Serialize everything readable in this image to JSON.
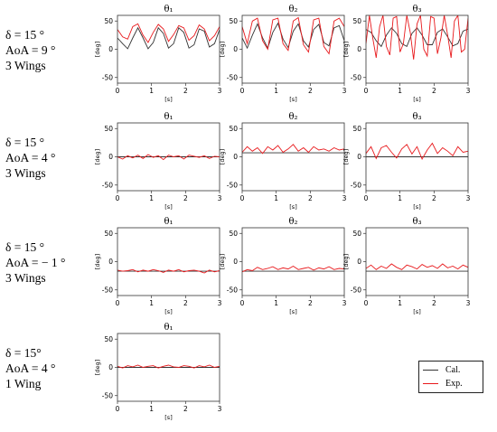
{
  "rows": [
    {
      "labels": [
        "δ = 15 °",
        "AoA = 9 °",
        "3 Wings"
      ]
    },
    {
      "labels": [
        "δ = 15 °",
        "AoA = 4 °",
        "3 Wings"
      ]
    },
    {
      "labels": [
        "δ = 15 °",
        "AoA = − 1 °",
        "3 Wings"
      ]
    },
    {
      "labels": [
        "δ = 15°",
        "AoA = 4 °",
        "1 Wing"
      ]
    }
  ],
  "legend": {
    "cal": "Cal.",
    "exp": "Exp."
  },
  "colors": {
    "cal": "#333333",
    "exp": "#e8191c"
  },
  "chart_data": [
    {
      "type": "line",
      "row": 0,
      "col": 0,
      "title": "θ₁",
      "xlabel": "[s]",
      "ylabel": "[deg]",
      "xlim": [
        0,
        3
      ],
      "ylim": [
        -60,
        60
      ],
      "yticks": [
        -50,
        0,
        50
      ],
      "xticks": [
        0,
        1,
        2,
        3
      ],
      "series": [
        {
          "name": "Cal.",
          "x": [
            0,
            0.15,
            0.3,
            0.45,
            0.6,
            0.75,
            0.9,
            1.05,
            1.2,
            1.35,
            1.5,
            1.65,
            1.8,
            1.95,
            2.1,
            2.25,
            2.4,
            2.55,
            2.7,
            2.85,
            3.0
          ],
          "values": [
            20,
            10,
            1,
            20,
            38,
            20,
            1,
            12,
            38,
            28,
            2,
            10,
            38,
            30,
            2,
            8,
            36,
            32,
            4,
            10,
            35
          ]
        },
        {
          "name": "Exp.",
          "x": [
            0,
            0.15,
            0.3,
            0.45,
            0.6,
            0.75,
            0.9,
            1.05,
            1.2,
            1.35,
            1.5,
            1.65,
            1.8,
            1.95,
            2.1,
            2.25,
            2.4,
            2.55,
            2.7,
            2.85,
            3.0
          ],
          "values": [
            35,
            22,
            18,
            40,
            45,
            25,
            12,
            30,
            44,
            36,
            14,
            26,
            42,
            38,
            16,
            24,
            43,
            36,
            15,
            24,
            40
          ]
        }
      ]
    },
    {
      "type": "line",
      "row": 0,
      "col": 1,
      "title": "θ₂",
      "xlabel": "[s]",
      "ylabel": "[deg]",
      "xlim": [
        0,
        3
      ],
      "ylim": [
        -60,
        60
      ],
      "yticks": [
        -50,
        0,
        50
      ],
      "xticks": [
        0,
        1,
        2,
        3
      ],
      "series": [
        {
          "name": "Cal.",
          "x": [
            0,
            0.15,
            0.3,
            0.45,
            0.6,
            0.75,
            0.9,
            1.05,
            1.2,
            1.35,
            1.5,
            1.65,
            1.8,
            1.95,
            2.1,
            2.25,
            2.4,
            2.55,
            2.7,
            2.85,
            3.0
          ],
          "values": [
            20,
            2,
            25,
            45,
            20,
            2,
            30,
            46,
            18,
            3,
            32,
            45,
            15,
            4,
            35,
            44,
            12,
            6,
            38,
            42,
            15
          ]
        },
        {
          "name": "Exp.",
          "x": [
            0,
            0.15,
            0.3,
            0.45,
            0.6,
            0.75,
            0.9,
            1.05,
            1.2,
            1.35,
            1.5,
            1.65,
            1.8,
            1.95,
            2.1,
            2.25,
            2.4,
            2.55,
            2.7,
            2.85,
            3.0
          ],
          "values": [
            40,
            10,
            50,
            55,
            15,
            0,
            52,
            55,
            10,
            -2,
            50,
            56,
            8,
            -5,
            52,
            55,
            5,
            -8,
            50,
            55,
            40
          ]
        }
      ]
    },
    {
      "type": "line",
      "row": 0,
      "col": 2,
      "title": "θ₃",
      "xlabel": "[s]",
      "ylabel": "[deg]",
      "xlim": [
        0,
        3
      ],
      "ylim": [
        -60,
        60
      ],
      "yticks": [
        -50,
        0,
        50
      ],
      "xticks": [
        0,
        1,
        2,
        3
      ],
      "series": [
        {
          "name": "Cal.",
          "x": [
            0,
            0.15,
            0.3,
            0.45,
            0.6,
            0.75,
            0.9,
            1.05,
            1.2,
            1.35,
            1.5,
            1.65,
            1.8,
            1.95,
            2.1,
            2.25,
            2.4,
            2.55,
            2.7,
            2.85,
            3.0
          ],
          "values": [
            35,
            30,
            15,
            5,
            25,
            38,
            28,
            10,
            5,
            28,
            38,
            25,
            8,
            8,
            30,
            36,
            22,
            6,
            10,
            32,
            36
          ]
        },
        {
          "name": "Exp.",
          "x": [
            0,
            0.1,
            0.2,
            0.3,
            0.4,
            0.5,
            0.6,
            0.7,
            0.8,
            0.9,
            1.0,
            1.1,
            1.2,
            1.3,
            1.4,
            1.5,
            1.6,
            1.7,
            1.8,
            1.9,
            2.0,
            2.1,
            2.2,
            2.3,
            2.4,
            2.5,
            2.6,
            2.7,
            2.8,
            2.9,
            3.0
          ],
          "values": [
            10,
            60,
            20,
            -15,
            40,
            60,
            5,
            -10,
            55,
            58,
            -5,
            10,
            60,
            30,
            -18,
            45,
            60,
            0,
            -12,
            58,
            55,
            -8,
            20,
            60,
            25,
            -15,
            50,
            60,
            -5,
            0,
            55
          ]
        }
      ]
    },
    {
      "type": "line",
      "row": 1,
      "col": 0,
      "title": "θ₁",
      "xlabel": "[s]",
      "ylabel": "[deg]",
      "xlim": [
        0,
        3
      ],
      "ylim": [
        -60,
        60
      ],
      "yticks": [
        -50,
        0,
        50
      ],
      "xticks": [
        0,
        1,
        2,
        3
      ],
      "series": [
        {
          "name": "Cal.",
          "x": [
            0,
            3
          ],
          "values": [
            0,
            0
          ]
        },
        {
          "name": "Exp.",
          "x": [
            0,
            0.15,
            0.3,
            0.45,
            0.6,
            0.75,
            0.9,
            1.05,
            1.2,
            1.35,
            1.5,
            1.65,
            1.8,
            1.95,
            2.1,
            2.25,
            2.4,
            2.55,
            2.7,
            2.85,
            3.0
          ],
          "values": [
            0,
            -4,
            2,
            -2,
            3,
            -3,
            4,
            -1,
            2,
            -5,
            3,
            0,
            2,
            -4,
            3,
            1,
            -1,
            2,
            -3,
            1,
            0
          ]
        }
      ]
    },
    {
      "type": "line",
      "row": 1,
      "col": 1,
      "title": "θ₂",
      "xlabel": "[s]",
      "ylabel": "[deg]",
      "xlim": [
        0,
        3
      ],
      "ylim": [
        -60,
        60
      ],
      "yticks": [
        -50,
        0,
        50
      ],
      "xticks": [
        0,
        1,
        2,
        3
      ],
      "series": [
        {
          "name": "Cal.",
          "x": [
            0,
            3
          ],
          "values": [
            7,
            7
          ]
        },
        {
          "name": "Exp.",
          "x": [
            0,
            0.15,
            0.3,
            0.45,
            0.6,
            0.75,
            0.9,
            1.05,
            1.2,
            1.35,
            1.5,
            1.65,
            1.8,
            1.95,
            2.1,
            2.25,
            2.4,
            2.55,
            2.7,
            2.85,
            3.0
          ],
          "values": [
            8,
            18,
            10,
            16,
            6,
            18,
            12,
            20,
            8,
            14,
            22,
            10,
            16,
            8,
            18,
            12,
            14,
            10,
            16,
            12,
            14
          ]
        }
      ]
    },
    {
      "type": "line",
      "row": 1,
      "col": 2,
      "title": "θ₃",
      "xlabel": "[s]",
      "ylabel": "[deg]",
      "xlim": [
        0,
        3
      ],
      "ylim": [
        -60,
        60
      ],
      "yticks": [
        -50,
        0,
        50
      ],
      "xticks": [
        0,
        1,
        2,
        3
      ],
      "series": [
        {
          "name": "Cal.",
          "x": [
            0,
            3
          ],
          "values": [
            0,
            0
          ]
        },
        {
          "name": "Exp.",
          "x": [
            0,
            0.15,
            0.3,
            0.45,
            0.6,
            0.75,
            0.9,
            1.05,
            1.2,
            1.35,
            1.5,
            1.65,
            1.8,
            1.95,
            2.1,
            2.25,
            2.4,
            2.55,
            2.7,
            2.85,
            3.0
          ],
          "values": [
            6,
            18,
            -3,
            16,
            20,
            8,
            -2,
            14,
            22,
            5,
            18,
            -4,
            12,
            24,
            6,
            16,
            10,
            2,
            18,
            8,
            10
          ]
        }
      ]
    },
    {
      "type": "line",
      "row": 2,
      "col": 0,
      "title": "θ₁",
      "xlabel": "[s]",
      "ylabel": "[deg]",
      "xlim": [
        0,
        3
      ],
      "ylim": [
        -60,
        60
      ],
      "yticks": [
        -50,
        0,
        50
      ],
      "xticks": [
        0,
        1,
        2,
        3
      ],
      "series": [
        {
          "name": "Cal.",
          "x": [
            0,
            3
          ],
          "values": [
            -17,
            -17
          ]
        },
        {
          "name": "Exp.",
          "x": [
            0,
            0.15,
            0.3,
            0.45,
            0.6,
            0.75,
            0.9,
            1.05,
            1.2,
            1.35,
            1.5,
            1.65,
            1.8,
            1.95,
            2.1,
            2.25,
            2.4,
            2.55,
            2.7,
            2.85,
            3.0
          ],
          "values": [
            -15,
            -17,
            -16,
            -14,
            -18,
            -15,
            -17,
            -14,
            -16,
            -19,
            -15,
            -17,
            -14,
            -18,
            -16,
            -15,
            -17,
            -20,
            -15,
            -18,
            -16
          ]
        }
      ]
    },
    {
      "type": "line",
      "row": 2,
      "col": 1,
      "title": "θ₂",
      "xlabel": "[s]",
      "ylabel": "[deg]",
      "xlim": [
        0,
        3
      ],
      "ylim": [
        -60,
        60
      ],
      "yticks": [
        -50,
        0,
        50
      ],
      "xticks": [
        0,
        1,
        2,
        3
      ],
      "series": [
        {
          "name": "Cal.",
          "x": [
            0,
            3
          ],
          "values": [
            -17,
            -17
          ]
        },
        {
          "name": "Exp.",
          "x": [
            0,
            0.15,
            0.3,
            0.45,
            0.6,
            0.75,
            0.9,
            1.05,
            1.2,
            1.35,
            1.5,
            1.65,
            1.8,
            1.95,
            2.1,
            2.25,
            2.4,
            2.55,
            2.7,
            2.85,
            3.0
          ],
          "values": [
            -18,
            -14,
            -16,
            -10,
            -14,
            -12,
            -9,
            -14,
            -11,
            -13,
            -8,
            -14,
            -12,
            -10,
            -15,
            -11,
            -13,
            -9,
            -14,
            -12,
            -13
          ]
        }
      ]
    },
    {
      "type": "line",
      "row": 2,
      "col": 2,
      "title": "θ₃",
      "xlabel": "[s]",
      "ylabel": "[deg]",
      "xlim": [
        0,
        3
      ],
      "ylim": [
        -60,
        60
      ],
      "yticks": [
        -50,
        0,
        50
      ],
      "xticks": [
        0,
        1,
        2,
        3
      ],
      "series": [
        {
          "name": "Cal.",
          "x": [
            0,
            3
          ],
          "values": [
            -17,
            -17
          ]
        },
        {
          "name": "Exp.",
          "x": [
            0,
            0.15,
            0.3,
            0.45,
            0.6,
            0.75,
            0.9,
            1.05,
            1.2,
            1.35,
            1.5,
            1.65,
            1.8,
            1.95,
            2.1,
            2.25,
            2.4,
            2.55,
            2.7,
            2.85,
            3.0
          ],
          "values": [
            -12,
            -6,
            -14,
            -8,
            -12,
            -4,
            -10,
            -14,
            -6,
            -9,
            -13,
            -5,
            -10,
            -7,
            -12,
            -4,
            -11,
            -8,
            -13,
            -6,
            -10
          ]
        }
      ]
    },
    {
      "type": "line",
      "row": 3,
      "col": 0,
      "title": "θ₁",
      "xlabel": "[s]",
      "ylabel": "[deg]",
      "xlim": [
        0,
        3
      ],
      "ylim": [
        -60,
        60
      ],
      "yticks": [
        -50,
        0,
        50
      ],
      "xticks": [
        0,
        1,
        2,
        3
      ],
      "series": [
        {
          "name": "Cal.",
          "x": [
            0,
            3
          ],
          "values": [
            0,
            0
          ]
        },
        {
          "name": "Exp.",
          "x": [
            0,
            0.15,
            0.3,
            0.45,
            0.6,
            0.75,
            0.9,
            1.05,
            1.2,
            1.35,
            1.5,
            1.65,
            1.8,
            1.95,
            2.1,
            2.25,
            2.4,
            2.55,
            2.7,
            2.85,
            3.0
          ],
          "values": [
            2,
            -1,
            3,
            1,
            4,
            0,
            2,
            3,
            -1,
            2,
            4,
            1,
            0,
            3,
            2,
            -1,
            3,
            1,
            4,
            0,
            2
          ]
        }
      ]
    }
  ]
}
